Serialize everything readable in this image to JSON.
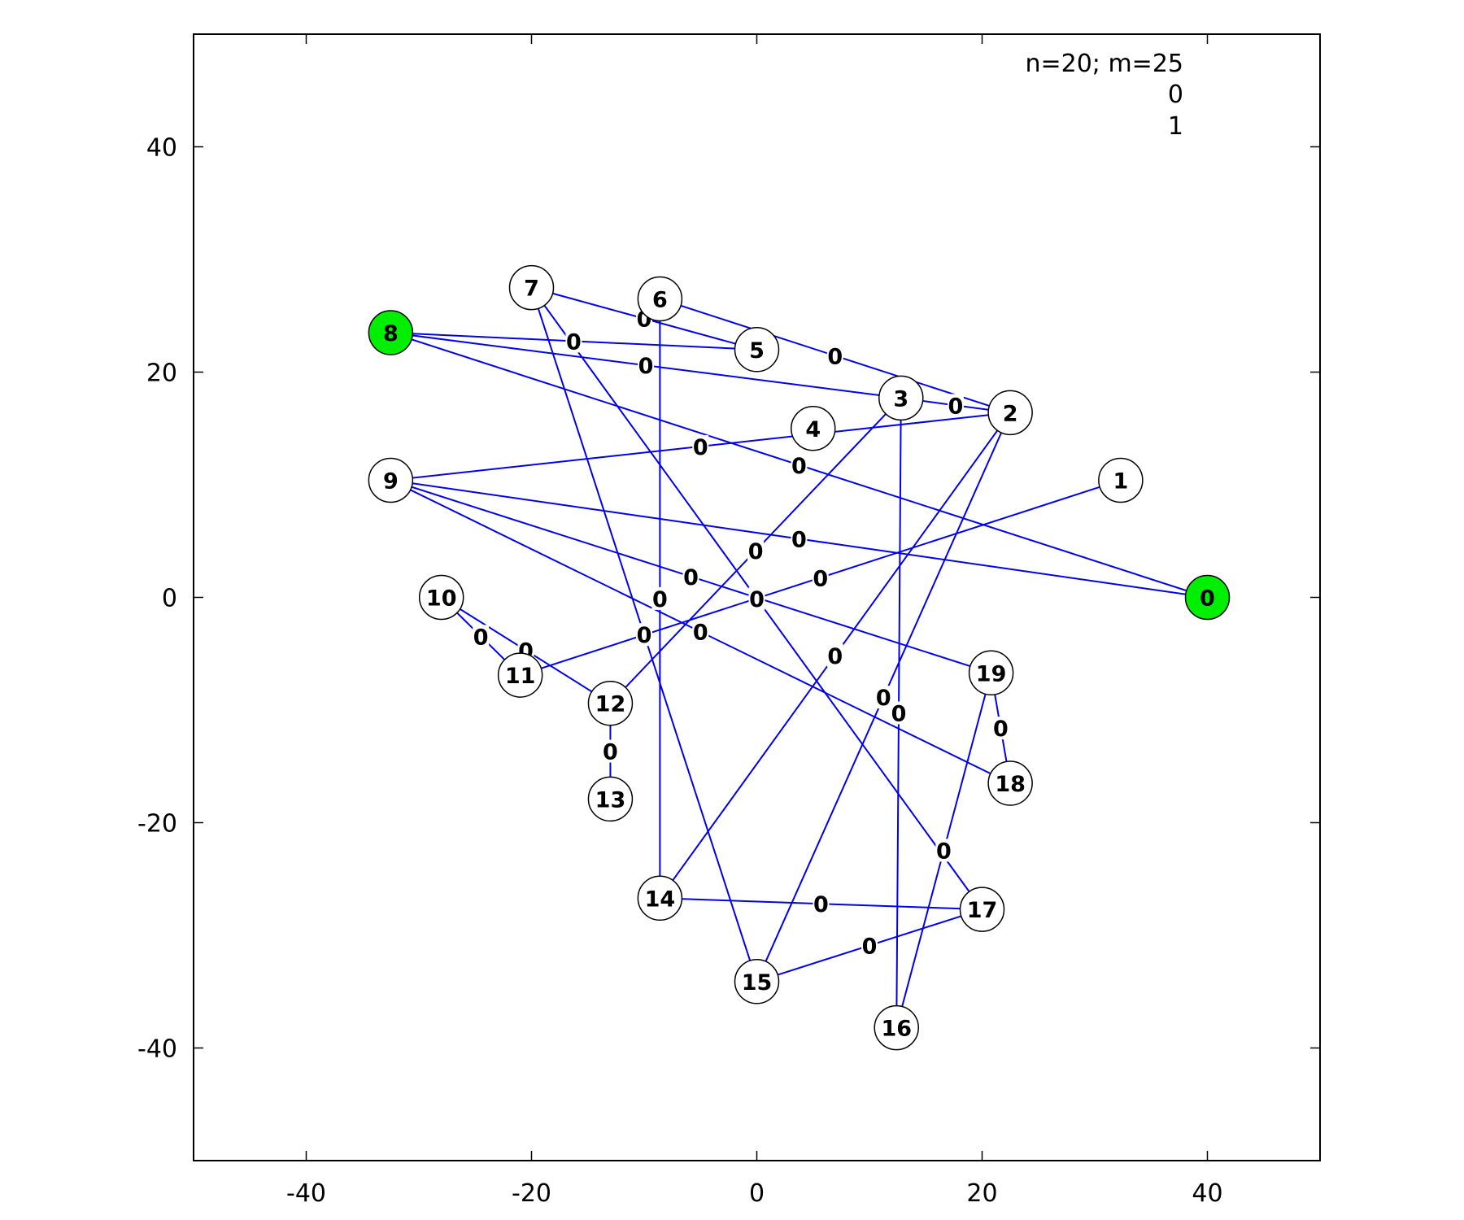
{
  "chart_data": {
    "type": "graph",
    "legend": [
      "n=20; m=25",
      "0",
      "1"
    ],
    "xlim": [
      -50,
      50
    ],
    "ylim": [
      -50,
      50
    ],
    "xticks": [
      -40,
      -20,
      0,
      20,
      40
    ],
    "yticks": [
      40,
      20,
      0,
      -20,
      -40
    ],
    "colors": {
      "edge": "#0000ee",
      "highlight": "#00ee00",
      "node": "#ffffff"
    },
    "nodes": [
      {
        "id": 0,
        "label": "0",
        "x": 40,
        "y": 0,
        "highlight": true
      },
      {
        "id": 1,
        "label": "1",
        "x": 32.3,
        "y": 10.4,
        "highlight": false
      },
      {
        "id": 2,
        "label": "2",
        "x": 22.5,
        "y": 16.4,
        "highlight": false
      },
      {
        "id": 3,
        "label": "3",
        "x": 12.8,
        "y": 17.7,
        "highlight": false
      },
      {
        "id": 4,
        "label": "4",
        "x": 5,
        "y": 15,
        "highlight": false
      },
      {
        "id": 5,
        "label": "5",
        "x": 0,
        "y": 22,
        "highlight": false
      },
      {
        "id": 6,
        "label": "6",
        "x": -8.6,
        "y": 26.5,
        "highlight": false
      },
      {
        "id": 7,
        "label": "7",
        "x": -20,
        "y": 27.5,
        "highlight": false
      },
      {
        "id": 8,
        "label": "8",
        "x": -32.5,
        "y": 23.5,
        "highlight": true
      },
      {
        "id": 9,
        "label": "9",
        "x": -32.5,
        "y": 10.4,
        "highlight": false
      },
      {
        "id": 10,
        "label": "10",
        "x": -28,
        "y": 0,
        "highlight": false
      },
      {
        "id": 11,
        "label": "11",
        "x": -21,
        "y": -6.9,
        "highlight": false
      },
      {
        "id": 12,
        "label": "12",
        "x": -13,
        "y": -9.4,
        "highlight": false
      },
      {
        "id": 13,
        "label": "13",
        "x": -13,
        "y": -17.9,
        "highlight": false
      },
      {
        "id": 14,
        "label": "14",
        "x": -8.6,
        "y": -26.7,
        "highlight": false
      },
      {
        "id": 15,
        "label": "15",
        "x": 0,
        "y": -34.1,
        "highlight": false
      },
      {
        "id": 16,
        "label": "16",
        "x": 12.4,
        "y": -38.2,
        "highlight": false
      },
      {
        "id": 17,
        "label": "17",
        "x": 20,
        "y": -27.7,
        "highlight": false
      },
      {
        "id": 18,
        "label": "18",
        "x": 22.5,
        "y": -16.5,
        "highlight": false
      },
      {
        "id": 19,
        "label": "19",
        "x": 20.8,
        "y": -6.7,
        "highlight": false
      }
    ],
    "edges": [
      {
        "source": 8,
        "target": 5,
        "label": "0"
      },
      {
        "source": 8,
        "target": 3,
        "label": "0"
      },
      {
        "source": 8,
        "target": 0,
        "label": "0"
      },
      {
        "source": 7,
        "target": 5,
        "label": "0"
      },
      {
        "source": 7,
        "target": 17,
        "label": "0"
      },
      {
        "source": 7,
        "target": 15,
        "label": "0"
      },
      {
        "source": 6,
        "target": 14,
        "label": "0"
      },
      {
        "source": 6,
        "target": 2,
        "label": "0"
      },
      {
        "source": 3,
        "target": 2,
        "label": "0"
      },
      {
        "source": 3,
        "target": 12,
        "label": "0"
      },
      {
        "source": 3,
        "target": 16,
        "label": "0"
      },
      {
        "source": 2,
        "target": 9,
        "label": "0"
      },
      {
        "source": 2,
        "target": 14,
        "label": "0"
      },
      {
        "source": 2,
        "target": 15,
        "label": "0"
      },
      {
        "source": 9,
        "target": 0,
        "label": "0"
      },
      {
        "source": 9,
        "target": 19,
        "label": "0"
      },
      {
        "source": 9,
        "target": 18,
        "label": "0"
      },
      {
        "source": 1,
        "target": 11,
        "label": "0"
      },
      {
        "source": 10,
        "target": 11,
        "label": "0"
      },
      {
        "source": 10,
        "target": 12,
        "label": "0"
      },
      {
        "source": 12,
        "target": 13,
        "label": "0"
      },
      {
        "source": 14,
        "target": 17,
        "label": "0"
      },
      {
        "source": 15,
        "target": 17,
        "label": "0"
      },
      {
        "source": 19,
        "target": 16,
        "label": "0"
      },
      {
        "source": 19,
        "target": 18,
        "label": "0"
      }
    ]
  }
}
